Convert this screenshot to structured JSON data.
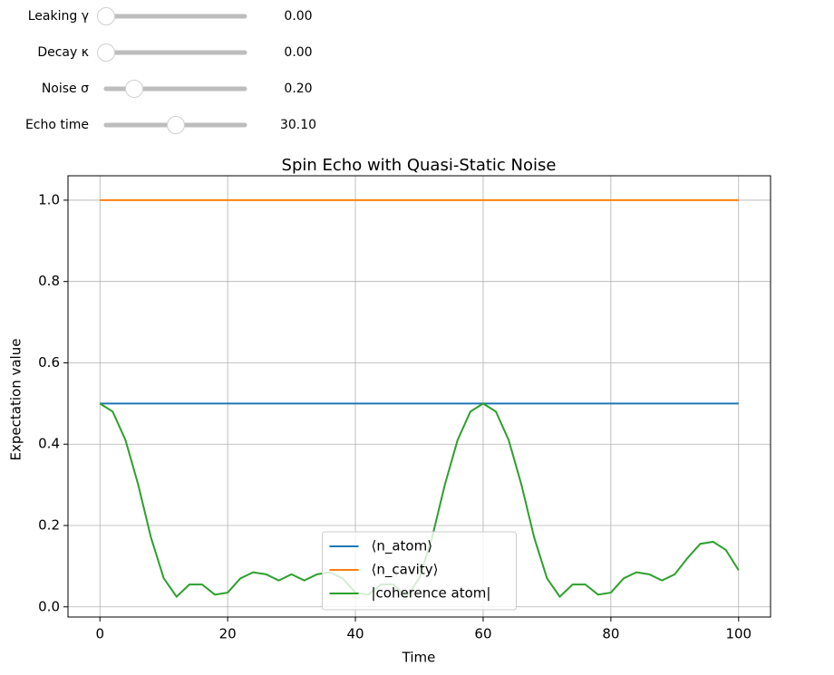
{
  "controls": [
    {
      "label": "Leaking γ",
      "value": "0.00"
    },
    {
      "label": "Decay κ",
      "value": "0.00"
    },
    {
      "label": "Noise σ",
      "value": "0.20"
    },
    {
      "label": "Echo time",
      "value": "30.10"
    }
  ],
  "chart_data": {
    "type": "line",
    "title": "Spin Echo with Quasi-Static Noise",
    "x_label": "Time",
    "y_label": "Expectation value",
    "x": [
      0,
      2,
      4,
      6,
      8,
      10,
      12,
      14,
      16,
      18,
      20,
      22,
      24,
      26,
      28,
      30,
      32,
      34,
      36,
      38,
      40,
      42,
      44,
      46,
      48,
      50,
      52,
      54,
      56,
      58,
      60,
      62,
      64,
      66,
      68,
      70,
      72,
      74,
      76,
      78,
      80,
      82,
      84,
      86,
      88,
      90,
      92,
      94,
      96,
      98,
      100
    ],
    "series": [
      {
        "name": "⟨n_atom⟩",
        "color": "#1f77b4",
        "values": [
          0.5,
          0.5,
          0.5,
          0.5,
          0.5,
          0.5,
          0.5,
          0.5,
          0.5,
          0.5,
          0.5,
          0.5,
          0.5,
          0.5,
          0.5,
          0.5,
          0.5,
          0.5,
          0.5,
          0.5,
          0.5,
          0.5,
          0.5,
          0.5,
          0.5,
          0.5,
          0.5,
          0.5,
          0.5,
          0.5,
          0.5,
          0.5,
          0.5,
          0.5,
          0.5,
          0.5,
          0.5,
          0.5,
          0.5,
          0.5,
          0.5,
          0.5,
          0.5,
          0.5,
          0.5,
          0.5,
          0.5,
          0.5,
          0.5,
          0.5,
          0.5
        ]
      },
      {
        "name": "⟨n_cavity⟩",
        "color": "#ff7f0e",
        "values": [
          1,
          1,
          1,
          1,
          1,
          1,
          1,
          1,
          1,
          1,
          1,
          1,
          1,
          1,
          1,
          1,
          1,
          1,
          1,
          1,
          1,
          1,
          1,
          1,
          1,
          1,
          1,
          1,
          1,
          1,
          1,
          1,
          1,
          1,
          1,
          1,
          1,
          1,
          1,
          1,
          1,
          1,
          1,
          1,
          1,
          1,
          1,
          1,
          1,
          1,
          1
        ]
      },
      {
        "name": "|coherence atom|",
        "color": "#2ca02c",
        "values": [
          0.5,
          0.48,
          0.41,
          0.3,
          0.17,
          0.07,
          0.025,
          0.055,
          0.055,
          0.03,
          0.035,
          0.07,
          0.085,
          0.08,
          0.065,
          0.08,
          0.065,
          0.08,
          0.085,
          0.07,
          0.035,
          0.03,
          0.055,
          0.055,
          0.025,
          0.07,
          0.17,
          0.3,
          0.41,
          0.48,
          0.5,
          0.48,
          0.41,
          0.3,
          0.17,
          0.07,
          0.025,
          0.055,
          0.055,
          0.03,
          0.035,
          0.07,
          0.085,
          0.08,
          0.065,
          0.08,
          0.12,
          0.155,
          0.16,
          0.14,
          0.09
        ]
      }
    ],
    "xlim": [
      -5,
      105
    ],
    "ylim": [
      -0.025,
      1.06
    ],
    "xticks": [
      0,
      20,
      40,
      60,
      80,
      100
    ],
    "yticks": [
      {
        "value": 0,
        "label": "0.0"
      },
      0.2,
      0.4,
      0.6,
      0.8,
      {
        "value": 1,
        "label": "1.0"
      }
    ],
    "grid": true,
    "legend": "lower center"
  }
}
